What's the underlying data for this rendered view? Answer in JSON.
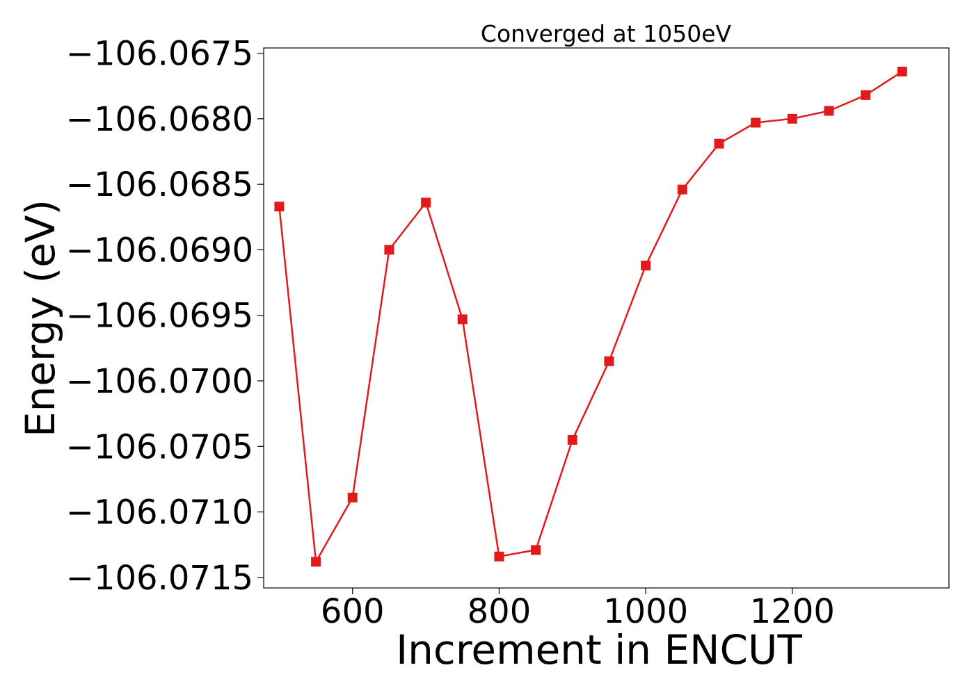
{
  "chart_data": {
    "type": "line",
    "title": "Converged at 1050eV",
    "xlabel": "Increment in ENCUT",
    "ylabel": "Energy (eV)",
    "x": [
      500,
      550,
      600,
      650,
      700,
      750,
      800,
      850,
      900,
      950,
      1000,
      1050,
      1100,
      1150,
      1200,
      1250,
      1300,
      1350
    ],
    "series": [
      {
        "values": [
          -106.06867,
          -106.07138,
          -106.07089,
          -106.069,
          -106.06864,
          -106.06953,
          -106.07134,
          -106.07129,
          -106.07045,
          -106.06985,
          -106.06912,
          -106.06854,
          -106.06819,
          -106.06803,
          -106.068,
          -106.06794,
          -106.06782,
          -106.06764
        ],
        "color": "#e31a1c",
        "marker": "square"
      }
    ],
    "xlim": [
      478.75,
      1413.75
    ],
    "ylim": [
      -106.07158,
      -106.06746
    ],
    "xticks": [
      600,
      800,
      1000,
      1200
    ],
    "xtick_labels": [
      "600",
      "800",
      "1000",
      "1200"
    ],
    "yticks": [
      -106.0715,
      -106.071,
      -106.0705,
      -106.07,
      -106.0695,
      -106.069,
      -106.0685,
      -106.068,
      -106.0675
    ],
    "ytick_labels": [
      "−106.0715",
      "−106.0710",
      "−106.0705",
      "−106.0700",
      "−106.0695",
      "−106.0690",
      "−106.0685",
      "−106.0680",
      "−106.0675"
    ],
    "grid": false,
    "legend": "none"
  }
}
